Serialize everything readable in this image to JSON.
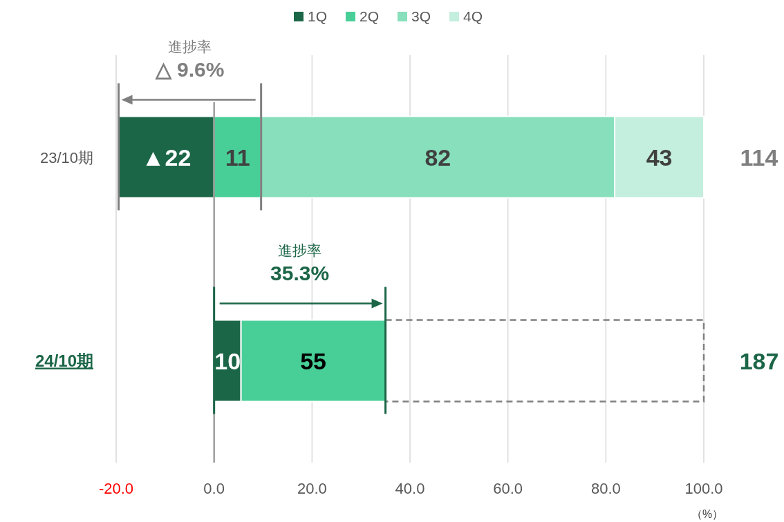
{
  "chart_data": {
    "type": "bar",
    "orientation": "horizontal",
    "stacked": true,
    "categories": [
      "23/10期",
      "24/10期"
    ],
    "series": [
      {
        "name": "1Q",
        "color": "#1b6647",
        "values": [
          -19.5,
          5.5
        ]
      },
      {
        "name": "2Q",
        "color": "#48cf98",
        "values": [
          9.6,
          29.5
        ]
      },
      {
        "name": "3Q",
        "color": "#87dfbb",
        "values": [
          72.2,
          null
        ]
      },
      {
        "name": "4Q",
        "color": "#c4eedd",
        "values": [
          18.2,
          null
        ]
      },
      {
        "color": "#808080",
        "values": [
          null,
          65.0
        ],
        "line_style": "dashed"
      }
    ],
    "annotations": [
      "進捗率\n△ 9.6%",
      "進捗率\n35.3%",
      "114",
      "187",
      "▲22",
      "11",
      "82",
      "43",
      "10",
      "55"
    ],
    "xlabel": "（%）",
    "xlim": [
      -20,
      100
    ],
    "xticks": [
      {
        "value": -20,
        "label": "-20.0"
      },
      {
        "value": 0,
        "label": "0.0"
      },
      {
        "value": 20,
        "label": "20.0"
      },
      {
        "value": 40,
        "label": "40.0"
      },
      {
        "value": 60,
        "label": "60.0"
      },
      {
        "value": 80,
        "label": "80.0"
      },
      {
        "value": 100,
        "label": "100.0"
      }
    ],
    "grid": "x",
    "legend": "top"
  }
}
